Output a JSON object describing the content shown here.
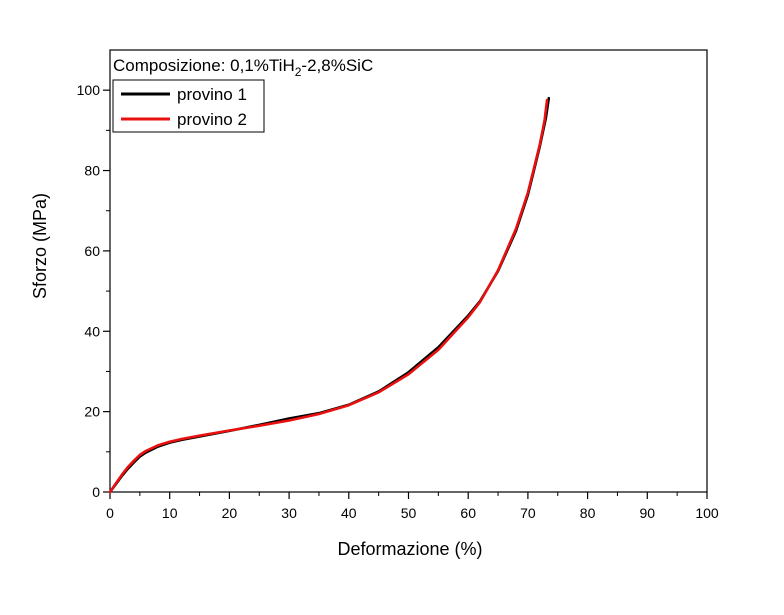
{
  "chart_data": {
    "type": "line",
    "title_prefix": "Composizione: 0,1%TiH",
    "title_subscript": "2",
    "title_suffix": "-2,8%SiC",
    "xlabel": "Deformazione (%)",
    "ylabel": "Sforzo (MPa)",
    "xlim": [
      0,
      100
    ],
    "ylim": [
      0,
      110
    ],
    "xticks": [
      0,
      10,
      20,
      30,
      40,
      50,
      60,
      70,
      80,
      90,
      100
    ],
    "yticks": [
      0,
      20,
      40,
      60,
      80,
      100
    ],
    "xtick_labels": [
      "0",
      "10",
      "20",
      "30",
      "40",
      "50",
      "60",
      "70",
      "80",
      "90",
      "100"
    ],
    "ytick_labels": [
      "0",
      "20",
      "40",
      "60",
      "80",
      "100"
    ],
    "legend_position": "top-left",
    "series": [
      {
        "name": "provino 1",
        "color": "#000000",
        "x": [
          0,
          1,
          2,
          3,
          4,
          5,
          6,
          8,
          10,
          12,
          15,
          20,
          25,
          30,
          35,
          40,
          45,
          50,
          55,
          60,
          62,
          65,
          68,
          70,
          71,
          72,
          73,
          73.5
        ],
        "y": [
          0,
          2,
          4,
          5.8,
          7.4,
          8.8,
          9.8,
          11.3,
          12.3,
          13,
          13.8,
          15.2,
          16.7,
          18.3,
          19.6,
          21.7,
          25,
          29.8,
          36,
          43.9,
          47.5,
          55,
          65,
          74,
          80,
          86,
          93,
          98
        ]
      },
      {
        "name": "provino 2",
        "color": "#e8110f",
        "x": [
          0,
          1,
          2,
          3,
          4,
          5,
          6,
          8,
          10,
          12,
          15,
          20,
          25,
          30,
          35,
          40,
          45,
          50,
          55,
          60,
          62,
          65,
          68,
          70,
          71,
          72,
          72.8,
          73.2
        ],
        "y": [
          0,
          2.2,
          4.3,
          6.2,
          7.8,
          9.2,
          10.2,
          11.6,
          12.5,
          13.2,
          14,
          15.3,
          16.5,
          17.8,
          19.4,
          21.6,
          24.8,
          29.3,
          35.4,
          43.5,
          47.3,
          55.2,
          65.5,
          74.5,
          80.5,
          86.5,
          92.5,
          97.5
        ]
      }
    ]
  }
}
